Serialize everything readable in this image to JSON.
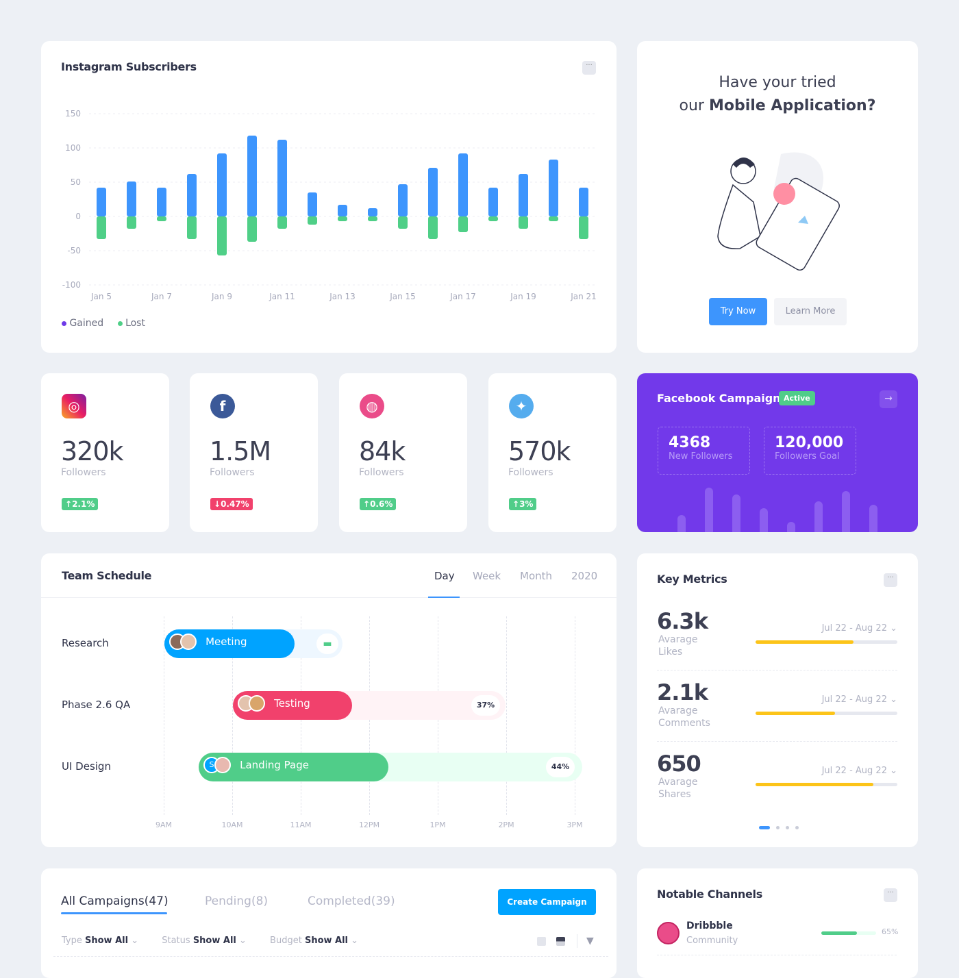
{
  "subscribers": {
    "title": "Instagram Subscribers",
    "menu": "···",
    "legend": [
      {
        "label": "Gained",
        "color": "#6e3ae8"
      },
      {
        "label": "Lost",
        "color": "#4fcf87"
      }
    ]
  },
  "chart_data": {
    "type": "bar",
    "stacked": true,
    "categories": [
      "Jan 5",
      "Jan 6",
      "Jan 7",
      "Jan 8",
      "Jan 9",
      "Jan 10",
      "Jan 11",
      "Jan 12",
      "Jan 13",
      "Jan 14",
      "Jan 15",
      "Jan 16",
      "Jan 17",
      "Jan 18",
      "Jan 19",
      "Jan 20",
      "Jan 21"
    ],
    "tick_labels": [
      "Jan 5",
      "Jan 7",
      "Jan 9",
      "Jan 11",
      "Jan 13",
      "Jan 15",
      "Jan 17",
      "Jan 19",
      "Jan 21"
    ],
    "yticks": [
      150,
      100,
      50,
      0,
      -50,
      -100
    ],
    "ylim": [
      -100,
      150
    ],
    "grid": true,
    "legend": "bottom-left",
    "series": [
      {
        "name": "Gained",
        "color": "#3d95fd",
        "values": [
          42,
          51,
          42,
          62,
          92,
          118,
          112,
          35,
          17,
          12,
          47,
          71,
          92,
          42,
          62,
          83,
          42
        ]
      },
      {
        "name": "Lost",
        "color": "#4fcf87",
        "values": [
          -33,
          -18,
          -7,
          -33,
          -57,
          -37,
          -18,
          -12,
          -7,
          -7,
          -18,
          -33,
          -23,
          -7,
          -18,
          -7,
          -33
        ]
      }
    ]
  },
  "promo": {
    "line1": "Have your tried",
    "line2_prefix": "our ",
    "line2_bold": "Mobile Application?",
    "try": "Try Now",
    "learn": "Learn More"
  },
  "stats": [
    {
      "icon": "instagram-icon",
      "value": "320k",
      "label": "Followers",
      "change": "2.1%",
      "dir": "up"
    },
    {
      "icon": "facebook-icon",
      "value": "1.5M",
      "label": "Followers",
      "change": "0.47%",
      "dir": "down"
    },
    {
      "icon": "dribbble-icon",
      "value": "84k",
      "label": "Followers",
      "change": "0.6%",
      "dir": "up"
    },
    {
      "icon": "twitter-icon",
      "value": "570k",
      "label": "Followers",
      "change": "3%",
      "dir": "up"
    }
  ],
  "fb": {
    "title": "Facebook Campaign",
    "badge": "Active",
    "new_value": "4368",
    "new_label": "New Followers",
    "goal_value": "120,000",
    "goal_label": "Followers Goal",
    "spark": [
      25,
      65,
      55,
      35,
      15,
      45,
      60,
      40
    ]
  },
  "schedule": {
    "title": "Team Schedule",
    "tabs": [
      "Day",
      "Week",
      "Month",
      "2020"
    ],
    "active_tab": "Day",
    "rows": [
      "Research",
      "Phase 2.6 QA",
      "UI Design"
    ],
    "tasks": [
      {
        "label": "Meeting",
        "progress": null
      },
      {
        "label": "Testing",
        "progress": "37%"
      },
      {
        "label": "Landing Page",
        "progress": "44%",
        "avatar_letter": "S"
      }
    ],
    "hours": [
      "9AM",
      "10AM",
      "11AM",
      "12PM",
      "1PM",
      "2PM",
      "3PM"
    ]
  },
  "metrics": {
    "title": "Key Metrics",
    "menu": "···",
    "items": [
      {
        "value": "6.3k",
        "label1": "Avarage",
        "label2": "Likes",
        "range": "Jul 22 - Aug 22",
        "progress": 0.69
      },
      {
        "value": "2.1k",
        "label1": "Avarage",
        "label2": "Comments",
        "range": "Jul 22 - Aug 22",
        "progress": 0.56
      },
      {
        "value": "650",
        "label1": "Avarage",
        "label2": "Shares",
        "range": "Jul 22 - Aug 22",
        "progress": 0.83
      }
    ]
  },
  "campaigns": {
    "tabs": [
      "All Campaigns(47)",
      "Pending(8)",
      "Completed(39)"
    ],
    "create": "Create Campaign",
    "filters": [
      {
        "label": "Type",
        "value": "Show All"
      },
      {
        "label": "Status",
        "value": "Show All"
      },
      {
        "label": "Budget",
        "value": "Show All"
      }
    ]
  },
  "channels": {
    "title": "Notable Channels",
    "menu": "···",
    "items": [
      {
        "name": "Dribbble",
        "sub": "Community",
        "pct": "65%",
        "progress": 0.65
      }
    ]
  }
}
